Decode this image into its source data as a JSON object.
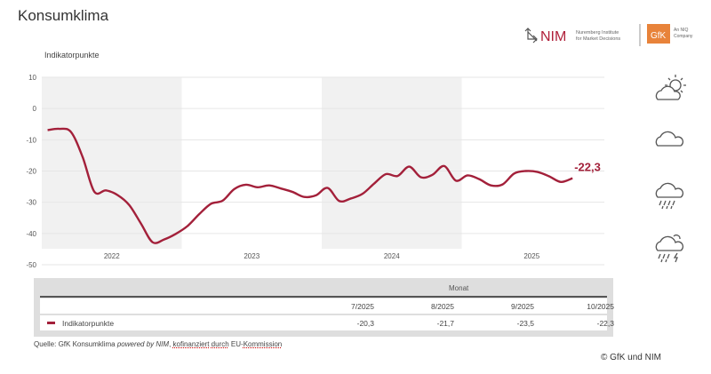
{
  "title": "Konsumklima",
  "logo": {
    "nim": "NIM",
    "nim_sub1": "Nuremberg Institute",
    "nim_sub2": "for Market Decisions",
    "gfk": "GfK",
    "gfk_sub1": "An NIQ",
    "gfk_sub2": "Company"
  },
  "colors": {
    "line": "#a3203a",
    "band": "#f1f1f1",
    "table_bg": "#dedede"
  },
  "weather_icons": [
    "sun-cloud-icon",
    "cloud-icon",
    "rain-cloud-icon",
    "storm-cloud-icon"
  ],
  "table": {
    "header": "Monat",
    "columns": [
      "7/2025",
      "8/2025",
      "9/2025",
      "10/2025"
    ],
    "rows": [
      {
        "label": "Indikatorpunkte",
        "values": [
          "-20,3",
          "-21,7",
          "-23,5",
          "-22,3"
        ]
      }
    ]
  },
  "source": {
    "prefix": "Quelle: GfK Konsumklima ",
    "italic": "powered by NIM",
    "suffix1": ", ",
    "underlined1": "kofinanziert",
    "mid": " ",
    "underlined2": "durch",
    "mid2": " EU-",
    "underlined3": "Kommission"
  },
  "copyright": "© GfK und NIM",
  "chart_data": {
    "type": "line",
    "title": "Konsumklima",
    "ylabel": "Indikatorpunkte",
    "xlabel": "",
    "ylim": [
      -50,
      10
    ],
    "yticks": [
      10,
      0,
      -10,
      -20,
      -30,
      -40,
      -50
    ],
    "year_labels": [
      "2022",
      "2023",
      "2024",
      "2025"
    ],
    "last_value_label": "-22,3",
    "x": [
      "1/2022",
      "2/2022",
      "3/2022",
      "4/2022",
      "5/2022",
      "6/2022",
      "7/2022",
      "8/2022",
      "9/2022",
      "10/2022",
      "11/2022",
      "12/2022",
      "1/2023",
      "2/2023",
      "3/2023",
      "4/2023",
      "5/2023",
      "6/2023",
      "7/2023",
      "8/2023",
      "9/2023",
      "10/2023",
      "11/2023",
      "12/2023",
      "1/2024",
      "2/2024",
      "3/2024",
      "4/2024",
      "5/2024",
      "6/2024",
      "7/2024",
      "8/2024",
      "9/2024",
      "10/2024",
      "11/2024",
      "12/2024",
      "1/2025",
      "2/2025",
      "3/2025",
      "4/2025",
      "5/2025",
      "6/2025",
      "7/2025",
      "8/2025",
      "9/2025",
      "10/2025"
    ],
    "series": [
      {
        "name": "Indikatorpunkte",
        "values": [
          -6.9,
          -6.5,
          -7.5,
          -15.5,
          -26.6,
          -26.2,
          -27.7,
          -30.9,
          -36.8,
          -42.8,
          -41.9,
          -40.1,
          -37.6,
          -33.8,
          -30.5,
          -29.5,
          -25.8,
          -24.4,
          -25.2,
          -24.6,
          -25.6,
          -26.7,
          -28.3,
          -27.8,
          -25.4,
          -29.6,
          -28.8,
          -27.3,
          -24.0,
          -21.0,
          -21.6,
          -18.6,
          -22.0,
          -21.2,
          -18.4,
          -23.1,
          -21.4,
          -22.6,
          -24.6,
          -24.3,
          -20.8,
          -20.0,
          -20.3,
          -21.7,
          -23.5,
          -22.3
        ]
      }
    ]
  }
}
